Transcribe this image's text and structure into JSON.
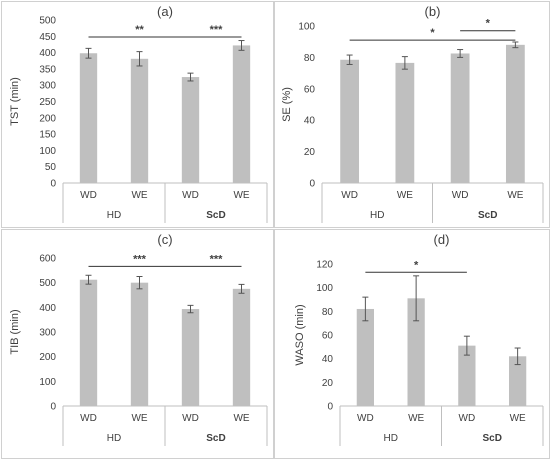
{
  "chart_data": [
    {
      "type": "bar",
      "title": "(a)",
      "ylabel": "TST (min)",
      "xlabel": "",
      "categories": [
        "WD",
        "WE",
        "WD",
        "WE"
      ],
      "groups": [
        "HD",
        "ScD"
      ],
      "values": [
        398,
        381,
        325,
        422
      ],
      "errors": [
        15,
        22,
        12,
        15
      ],
      "ylim": [
        0,
        500
      ],
      "yticks": [
        "0",
        "50",
        "100",
        "150",
        "200",
        "250",
        "300",
        "350",
        "400",
        "450",
        "500"
      ],
      "grid": false,
      "bar_color": "#bfbfbf",
      "brackets": [
        {
          "from": 0,
          "to": 2,
          "y": 448,
          "label": "**"
        },
        {
          "from": 2,
          "to": 3,
          "y": 448,
          "label": "***"
        }
      ]
    },
    {
      "type": "bar",
      "title": "(b)",
      "ylabel": "SE (%)",
      "xlabel": "",
      "categories": [
        "WD",
        "WE",
        "WD",
        "WE"
      ],
      "groups": [
        "HD",
        "ScD"
      ],
      "values": [
        78.5,
        76.5,
        82.5,
        88
      ],
      "errors": [
        3,
        4,
        2.5,
        1.8
      ],
      "ylim": [
        0,
        100
      ],
      "yticks": [
        "0",
        "20",
        "40",
        "60",
        "80",
        "100"
      ],
      "grid": false,
      "bar_color": "#bfbfbf",
      "brackets": [
        {
          "from": 0,
          "to": 3,
          "y": 91,
          "label": "*"
        },
        {
          "from": 2,
          "to": 3,
          "y": 97,
          "label": "*"
        }
      ]
    },
    {
      "type": "bar",
      "title": "(c)",
      "ylabel": "TIB (min)",
      "xlabel": "",
      "categories": [
        "WD",
        "WE",
        "WD",
        "WE"
      ],
      "groups": [
        "HD",
        "ScD"
      ],
      "values": [
        512,
        500,
        393,
        475
      ],
      "errors": [
        18,
        25,
        15,
        18
      ],
      "ylim": [
        0,
        600
      ],
      "yticks": [
        "0",
        "100",
        "200",
        "300",
        "400",
        "500",
        "600"
      ],
      "grid": false,
      "bar_color": "#bfbfbf",
      "brackets": [
        {
          "from": 0,
          "to": 2,
          "y": 566,
          "label": "***"
        },
        {
          "from": 2,
          "to": 3,
          "y": 566,
          "label": "***"
        }
      ]
    },
    {
      "type": "bar",
      "title": "(d)",
      "ylabel": "WASO (min)",
      "xlabel": "",
      "categories": [
        "WD",
        "WE",
        "WD",
        "WE"
      ],
      "groups": [
        "HD",
        "ScD"
      ],
      "values": [
        82,
        91,
        51,
        42
      ],
      "errors": [
        10,
        19,
        8,
        7
      ],
      "ylim": [
        0,
        120
      ],
      "yticks": [
        "0",
        "20",
        "40",
        "60",
        "80",
        "100",
        "120"
      ],
      "grid": false,
      "bar_color": "#bfbfbf",
      "brackets": [
        {
          "from": 0,
          "to": 2,
          "y": 113,
          "label": "*"
        }
      ]
    }
  ]
}
